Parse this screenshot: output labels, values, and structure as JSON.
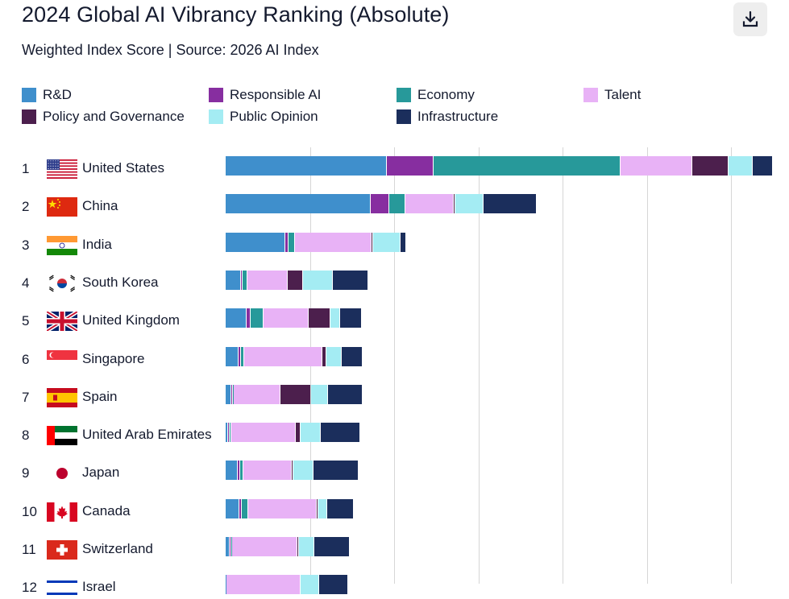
{
  "title": "2024 Global AI Vibrancy Ranking (Absolute)",
  "subtitle": "Weighted Index Score | Source: 2026 AI Index",
  "download_icon": "download-icon",
  "chart_data": {
    "type": "bar",
    "orientation": "horizontal",
    "stacked": true,
    "title": "2024 Global AI Vibrancy Ranking (Absolute)",
    "subtitle": "Weighted Index Score | Source: 2026 AI Index",
    "legend_position": "top",
    "grid": true,
    "xlim": [
      0,
      6.5
    ],
    "gridlines": [
      1,
      2,
      3,
      4,
      5,
      6
    ],
    "series": [
      {
        "name": "R&D",
        "color": "#3f8fcc"
      },
      {
        "name": "Responsible AI",
        "color": "#872ea0"
      },
      {
        "name": "Economy",
        "color": "#27999a"
      },
      {
        "name": "Talent",
        "color": "#e8b2f6"
      },
      {
        "name": "Policy and Governance",
        "color": "#4c1f4d"
      },
      {
        "name": "Public Opinion",
        "color": "#a4ecf3"
      },
      {
        "name": "Infrastructure",
        "color": "#1b2e5c"
      }
    ],
    "rows": [
      {
        "rank": "1",
        "country": "United States",
        "flag": "us",
        "values": [
          1.91,
          0.56,
          2.22,
          0.85,
          0.43,
          0.29,
          0.24
        ]
      },
      {
        "rank": "2",
        "country": "China",
        "flag": "cn",
        "values": [
          1.72,
          0.22,
          0.19,
          0.58,
          0.02,
          0.33,
          0.63
        ]
      },
      {
        "rank": "3",
        "country": "India",
        "flag": "in",
        "values": [
          0.71,
          0.04,
          0.07,
          0.91,
          0.02,
          0.33,
          0.06
        ]
      },
      {
        "rank": "4",
        "country": "South Korea",
        "flag": "kr",
        "values": [
          0.18,
          0.02,
          0.06,
          0.48,
          0.18,
          0.35,
          0.42
        ]
      },
      {
        "rank": "5",
        "country": "United Kingdom",
        "flag": "gb",
        "values": [
          0.25,
          0.05,
          0.15,
          0.54,
          0.25,
          0.12,
          0.26
        ]
      },
      {
        "rank": "6",
        "country": "Singapore",
        "flag": "sg",
        "values": [
          0.15,
          0.03,
          0.04,
          0.93,
          0.05,
          0.18,
          0.25
        ]
      },
      {
        "rank": "7",
        "country": "Spain",
        "flag": "es",
        "values": [
          0.07,
          0.02,
          0.01,
          0.55,
          0.36,
          0.21,
          0.41
        ]
      },
      {
        "rank": "8",
        "country": "United Arab Emirates",
        "flag": "ae",
        "values": [
          0.03,
          0.02,
          0.02,
          0.76,
          0.06,
          0.24,
          0.47
        ]
      },
      {
        "rank": "9",
        "country": "Japan",
        "flag": "jp",
        "values": [
          0.14,
          0.03,
          0.04,
          0.57,
          0.02,
          0.24,
          0.54
        ]
      },
      {
        "rank": "10",
        "country": "Canada",
        "flag": "ca",
        "values": [
          0.16,
          0.03,
          0.08,
          0.81,
          0.02,
          0.11,
          0.31
        ]
      },
      {
        "rank": "11",
        "country": "Switzerland",
        "flag": "ch",
        "values": [
          0.05,
          0.02,
          0.01,
          0.77,
          0.02,
          0.18,
          0.42
        ]
      },
      {
        "rank": "12",
        "country": "Israel",
        "flag": "il",
        "values": [
          0.01,
          0.0,
          0.0,
          0.88,
          0.0,
          0.22,
          0.34
        ]
      }
    ]
  }
}
